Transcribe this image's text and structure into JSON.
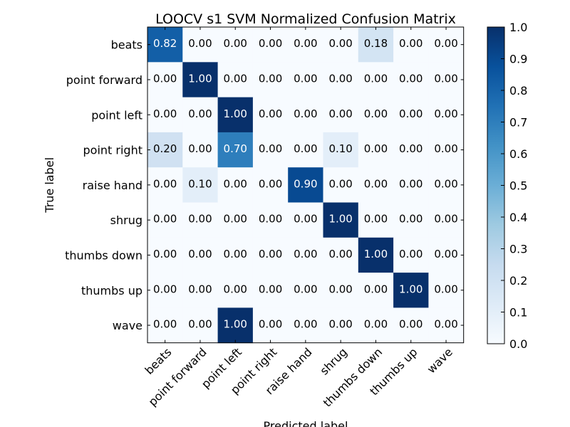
{
  "chart_data": {
    "type": "heatmap",
    "title": "LOOCV s1 SVM Normalized Confusion Matrix",
    "xlabel": "Predicted label",
    "ylabel": "True label",
    "labels": [
      "beats",
      "point forward",
      "point left",
      "point right",
      "raise hand",
      "shrug",
      "thumbs down",
      "thumbs up",
      "wave"
    ],
    "matrix": [
      [
        0.82,
        0.0,
        0.0,
        0.0,
        0.0,
        0.0,
        0.18,
        0.0,
        0.0
      ],
      [
        0.0,
        1.0,
        0.0,
        0.0,
        0.0,
        0.0,
        0.0,
        0.0,
        0.0
      ],
      [
        0.0,
        0.0,
        1.0,
        0.0,
        0.0,
        0.0,
        0.0,
        0.0,
        0.0
      ],
      [
        0.2,
        0.0,
        0.7,
        0.0,
        0.0,
        0.1,
        0.0,
        0.0,
        0.0
      ],
      [
        0.0,
        0.1,
        0.0,
        0.0,
        0.9,
        0.0,
        0.0,
        0.0,
        0.0
      ],
      [
        0.0,
        0.0,
        0.0,
        0.0,
        0.0,
        1.0,
        0.0,
        0.0,
        0.0
      ],
      [
        0.0,
        0.0,
        0.0,
        0.0,
        0.0,
        0.0,
        1.0,
        0.0,
        0.0
      ],
      [
        0.0,
        0.0,
        0.0,
        0.0,
        0.0,
        0.0,
        0.0,
        1.0,
        0.0
      ],
      [
        0.0,
        0.0,
        1.0,
        0.0,
        0.0,
        0.0,
        0.0,
        0.0,
        0.0
      ]
    ],
    "colorbar": {
      "range": [
        0.0,
        1.0
      ],
      "ticks": [
        "0.0",
        "0.1",
        "0.2",
        "0.3",
        "0.4",
        "0.5",
        "0.6",
        "0.7",
        "0.8",
        "0.9",
        "1.0"
      ]
    },
    "colormap": "Blues",
    "colormap_light": "#f7fbff",
    "colormap_dark": "#08306b"
  }
}
